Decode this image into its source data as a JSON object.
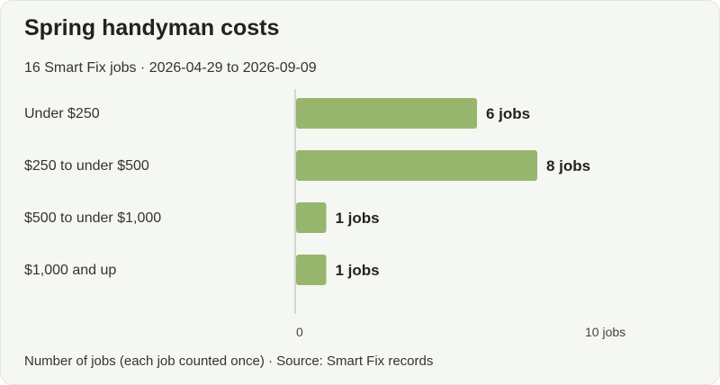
{
  "header": {
    "title": "Spring handyman costs",
    "subtitle": "16 Smart Fix jobs · 2026-04-29 to 2026-09-09"
  },
  "footer": {
    "note": "Number of jobs (each job counted once) · Source: Smart Fix records"
  },
  "chart_data": {
    "type": "bar",
    "orientation": "horizontal",
    "categories": [
      "Under $250",
      "$250 to under $500",
      "$500 to under $1,000",
      "$1,000 and up"
    ],
    "values": [
      6,
      8,
      1,
      1
    ],
    "value_labels": [
      "6 jobs",
      "8 jobs",
      "1 jobs",
      "1 jobs"
    ],
    "xlim": [
      0,
      10
    ],
    "ticks": [
      {
        "value": 0,
        "label": "0"
      },
      {
        "value": 10,
        "label": "10 jobs"
      }
    ],
    "grid": false,
    "colors": {
      "bar": "#97b56d",
      "axis": "#c9ccc4"
    }
  }
}
